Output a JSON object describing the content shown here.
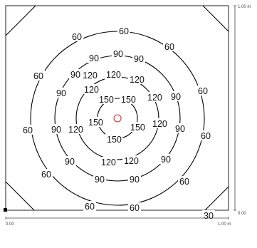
{
  "plot": {
    "contour_levels": [
      30,
      60,
      90,
      120,
      150
    ],
    "labels": {
      "l150": "150",
      "l120": "120",
      "l90": "90",
      "l60": "60",
      "l30": "30"
    },
    "axis": {
      "x_min": "0.00",
      "x_max": "1.00 m",
      "y_min": "0.00",
      "y_max": "1.00 m"
    },
    "colors": {
      "contour": "#000000",
      "source_marker": "#cc3333"
    }
  }
}
